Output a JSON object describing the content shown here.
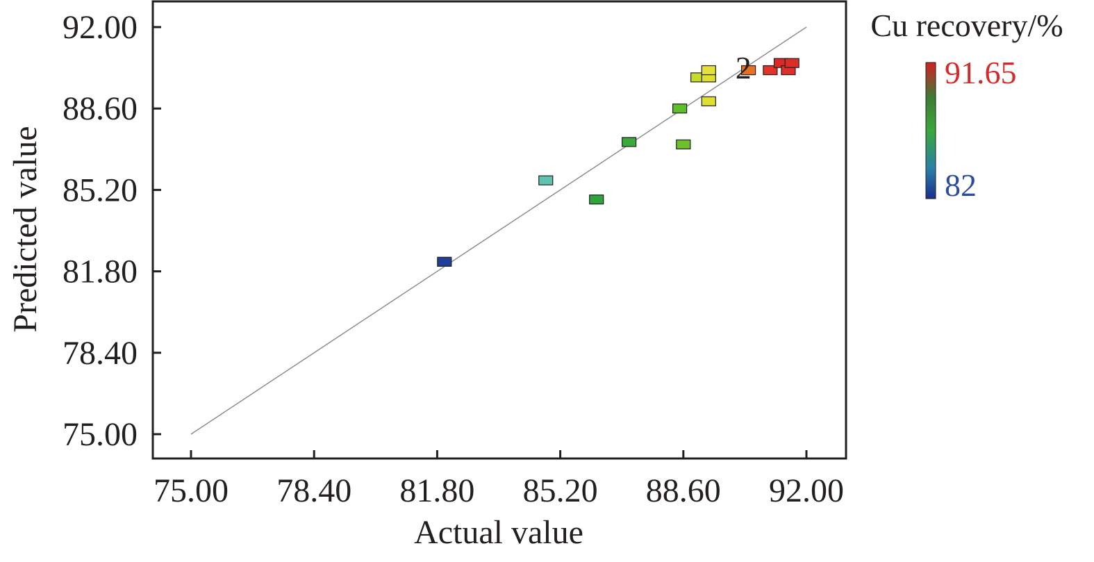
{
  "chart_data": {
    "type": "scatter",
    "title": "",
    "xlabel": "Actual value",
    "ylabel": "Predicted value",
    "xlim": [
      75.0,
      92.0
    ],
    "ylim": [
      75.0,
      92.0
    ],
    "x_ticks": [
      "75.00",
      "78.40",
      "81.80",
      "85.20",
      "88.60",
      "92.00"
    ],
    "y_ticks": [
      "75.00",
      "78.40",
      "81.80",
      "85.20",
      "88.60",
      "92.00"
    ],
    "reference_line": {
      "from": [
        75.0,
        75.0
      ],
      "to": [
        92.0,
        92.0
      ],
      "color": "#8c8c8c"
    },
    "annotation": {
      "text": "2",
      "x": 90.0,
      "y": 90.2
    },
    "colorbar": {
      "title": "Cu recovery/%",
      "max_label": "91.65",
      "min_label": "82",
      "max": 91.65,
      "min": 82.0,
      "max_label_color": "#d42a2a",
      "min_label_color": "#2c4c9c"
    },
    "series": [
      {
        "points": [
          {
            "x": 82.0,
            "y": 82.2,
            "color": "#1f3f9a"
          },
          {
            "x": 84.8,
            "y": 85.6,
            "color": "#5ec4b0"
          },
          {
            "x": 86.2,
            "y": 84.8,
            "color": "#2ea43a"
          },
          {
            "x": 87.1,
            "y": 87.2,
            "color": "#3aaa3a"
          },
          {
            "x": 88.5,
            "y": 88.6,
            "color": "#5cbf2a"
          },
          {
            "x": 88.6,
            "y": 87.1,
            "color": "#6cc02a"
          },
          {
            "x": 89.3,
            "y": 88.9,
            "color": "#e0e030"
          },
          {
            "x": 89.0,
            "y": 89.9,
            "color": "#c6dc2c"
          },
          {
            "x": 89.3,
            "y": 89.9,
            "color": "#dede34"
          },
          {
            "x": 89.3,
            "y": 90.2,
            "color": "#e4e038"
          },
          {
            "x": 90.4,
            "y": 90.2,
            "color": "#e8711e"
          },
          {
            "x": 91.0,
            "y": 90.2,
            "color": "#e13328"
          },
          {
            "x": 91.3,
            "y": 90.5,
            "color": "#db2a25"
          },
          {
            "x": 91.5,
            "y": 90.2,
            "color": "#e02e28"
          },
          {
            "x": 91.6,
            "y": 90.5,
            "color": "#dd2c26"
          }
        ]
      }
    ]
  }
}
